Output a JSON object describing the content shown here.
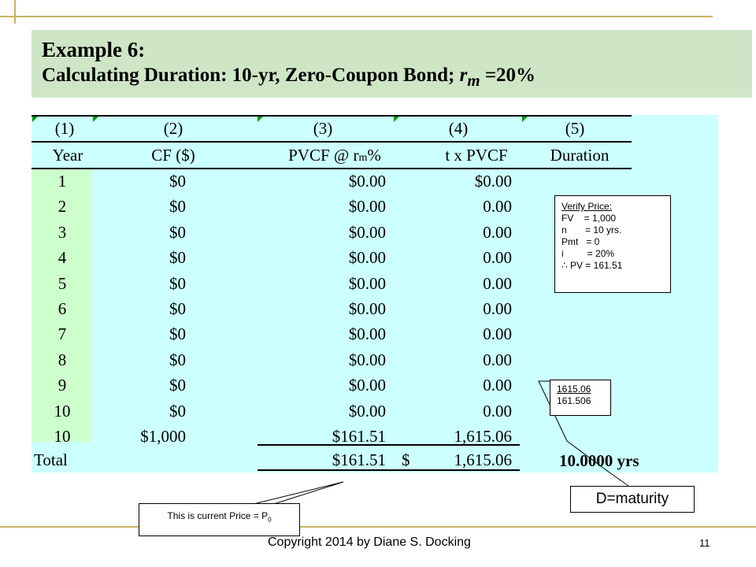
{
  "title": {
    "line1": "Example 6:",
    "line2_prefix": "Calculating Duration: 10-yr, Zero-Coupon Bond; ",
    "line2_var": "r",
    "line2_sub": "m",
    "line2_suffix": " =20%"
  },
  "table": {
    "col_numbers": [
      "(1)",
      "(2)",
      "(3)",
      "(4)",
      "(5)"
    ],
    "col_headers": {
      "year": "Year",
      "cf": "CF ($)",
      "pvcf_prefix": "PVCF @ r",
      "pvcf_sub": "m",
      "pvcf_suffix": "%",
      "tpvcf": "t x PVCF",
      "duration": "Duration"
    },
    "rows": [
      {
        "year": "1",
        "cf": "$0",
        "pvcf": "$0.00",
        "tpvcf": "$0.00"
      },
      {
        "year": "2",
        "cf": "$0",
        "pvcf": "$0.00",
        "tpvcf": "0.00"
      },
      {
        "year": "3",
        "cf": "$0",
        "pvcf": "$0.00",
        "tpvcf": "0.00"
      },
      {
        "year": "4",
        "cf": "$0",
        "pvcf": "$0.00",
        "tpvcf": "0.00"
      },
      {
        "year": "5",
        "cf": "$0",
        "pvcf": "$0.00",
        "tpvcf": "0.00"
      },
      {
        "year": "6",
        "cf": "$0",
        "pvcf": "$0.00",
        "tpvcf": "0.00"
      },
      {
        "year": "7",
        "cf": "$0",
        "pvcf": "$0.00",
        "tpvcf": "0.00"
      },
      {
        "year": "8",
        "cf": "$0",
        "pvcf": "$0.00",
        "tpvcf": "0.00"
      },
      {
        "year": "9",
        "cf": "$0",
        "pvcf": "$0.00",
        "tpvcf": "0.00"
      },
      {
        "year": "10",
        "cf": "$0",
        "pvcf": "$0.00",
        "tpvcf": "0.00"
      },
      {
        "year": "10",
        "cf": "$1,000",
        "pvcf": "$161.51",
        "tpvcf": "1,615.06"
      }
    ],
    "total": {
      "label": "Total",
      "pvcf": "$161.51",
      "dollar": "$",
      "tpvcf": "1,615.06",
      "duration": "10.0000",
      "duration_unit": "yrs"
    }
  },
  "verify_box": {
    "title": "Verify Price:",
    "lines": [
      "FV    = 1,000",
      "n       = 10 yrs.",
      "Pmt   = 0",
      "i         = 20%",
      "∴ PV = 161.51"
    ]
  },
  "calc_box": {
    "numerator": "1615.06",
    "denominator": "161.506"
  },
  "dmaturity_label": "D=maturity",
  "price_note": {
    "text": "This is current Price = P",
    "sub": "0"
  },
  "footer": {
    "copyright": "Copyright 2014 by Diane S. Docking",
    "page": "11"
  },
  "colors": {
    "title_bg": "#cfe6c6",
    "table_bg": "#ccffff",
    "year_col_bg": "#ccffcc",
    "frame": "#c8b560"
  }
}
